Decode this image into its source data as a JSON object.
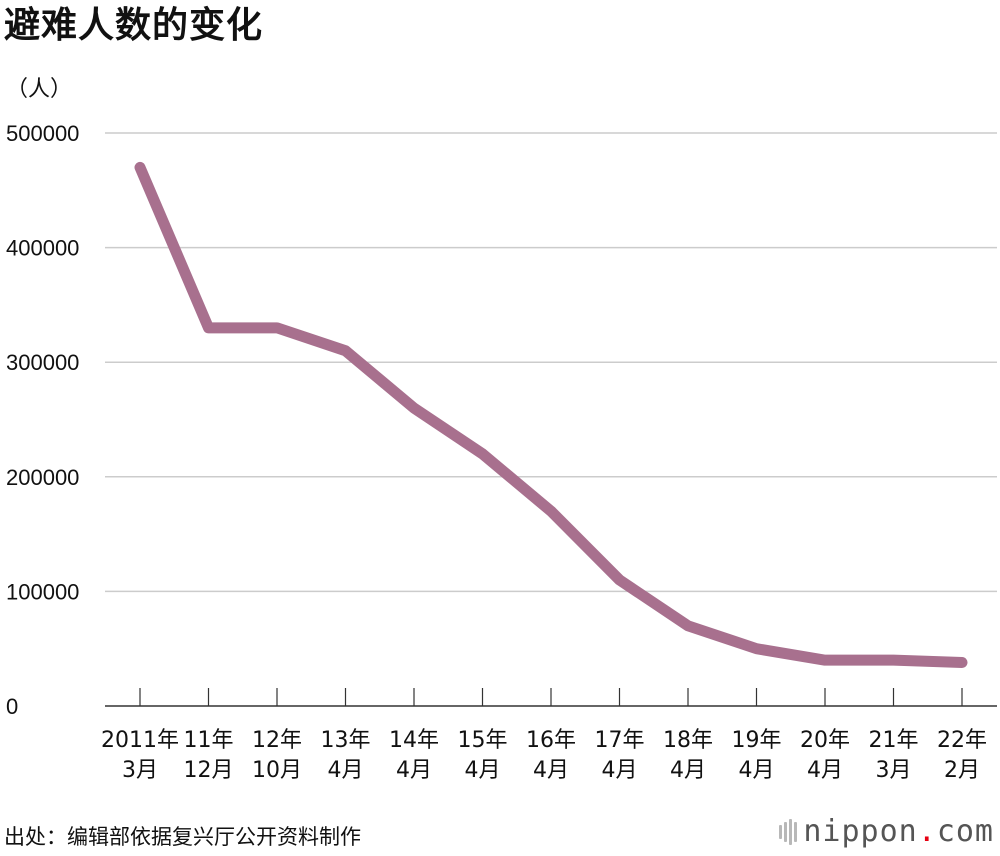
{
  "title": "避难人数的变化",
  "unit_label": "（人）",
  "source": "出处：编辑部依据复兴厅公开资料制作",
  "brand": {
    "name": "nippon",
    "dot": ".",
    "suffix": "com"
  },
  "colors": {
    "line": "#a8708e",
    "grid": "#cccccc",
    "axis": "#333333",
    "brand_dot": "#e60012"
  },
  "chart_data": {
    "type": "line",
    "title": "避难人数的变化",
    "ylabel": "（人）",
    "xlabel": "",
    "ylim": [
      0,
      500000
    ],
    "yticks": [
      0,
      100000,
      200000,
      300000,
      400000,
      500000
    ],
    "grid": true,
    "categories": [
      [
        "2011年",
        "3月"
      ],
      [
        "11年",
        "12月"
      ],
      [
        "12年",
        "10月"
      ],
      [
        "13年",
        "4月"
      ],
      [
        "14年",
        "4月"
      ],
      [
        "15年",
        "4月"
      ],
      [
        "16年",
        "4月"
      ],
      [
        "17年",
        "4月"
      ],
      [
        "18年",
        "4月"
      ],
      [
        "19年",
        "4月"
      ],
      [
        "20年",
        "4月"
      ],
      [
        "21年",
        "3月"
      ],
      [
        "22年",
        "2月"
      ]
    ],
    "series": [
      {
        "values": [
          470000,
          330000,
          330000,
          310000,
          260000,
          220000,
          170000,
          110000,
          70000,
          50000,
          40000,
          40000,
          38000
        ]
      }
    ]
  }
}
